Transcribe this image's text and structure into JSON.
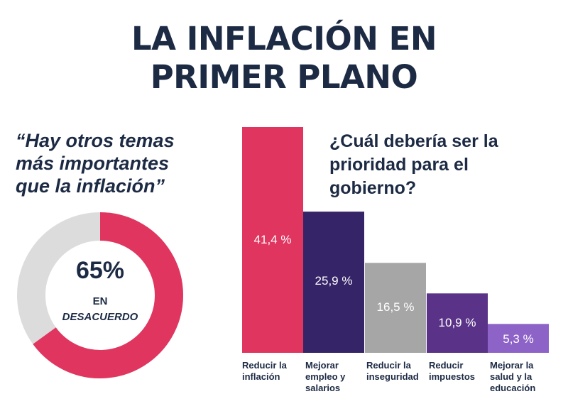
{
  "title": {
    "line1": "LA INFLACIÓN EN",
    "line2": "PRIMER PLANO"
  },
  "quote": {
    "lines": [
      "“Hay otros temas",
      "más importantes",
      "que la inflación”"
    ],
    "percent": "65%",
    "status_line1": "EN",
    "status_line2": "DESACUERDO",
    "value": 65
  },
  "question": {
    "lines": [
      "¿Cuál debería ser la",
      "prioridad para el",
      "gobierno?"
    ]
  },
  "colors": {
    "red": "#e0355f",
    "gray_ring": "#dcdcdc",
    "dark_purple": "#362468",
    "gray_bar": "#a6a6a6",
    "mid_purple": "#5a3388",
    "light_purple": "#8e63c8",
    "text": "#1c2a44"
  },
  "chart_data": [
    {
      "type": "pie",
      "categories": [
        "En desacuerdo",
        ""
      ],
      "values": [
        65,
        35
      ],
      "center_label": "65%",
      "center_sublabel": "EN DESACUERDO"
    },
    {
      "type": "bar",
      "title": "¿Cuál debería ser la prioridad para el gobierno?",
      "categories": [
        "Reducir la inflación",
        "Mejorar empleo y salarios",
        "Reducir la inseguridad",
        "Reducir impuestos",
        "Mejorar la salud y la educación"
      ],
      "category_lines": [
        [
          "Reducir la",
          "inflación"
        ],
        [
          "Mejorar",
          "empleo y",
          "salarios"
        ],
        [
          "Reducir la",
          "inseguridad"
        ],
        [
          "Reducir",
          "impuestos"
        ],
        [
          "Mejorar la",
          "salud y la",
          "educación"
        ]
      ],
      "values": [
        41.4,
        25.9,
        16.5,
        10.9,
        5.3
      ],
      "value_labels": [
        "41,4 %",
        "25,9 %",
        "16,5 %",
        "10,9 %",
        "5,3 %"
      ],
      "colors": [
        "#e0355f",
        "#362468",
        "#a6a6a6",
        "#5a3388",
        "#8e63c8"
      ],
      "ylim": [
        0,
        41.4
      ],
      "grid": false,
      "xlabel": "",
      "ylabel": ""
    }
  ]
}
